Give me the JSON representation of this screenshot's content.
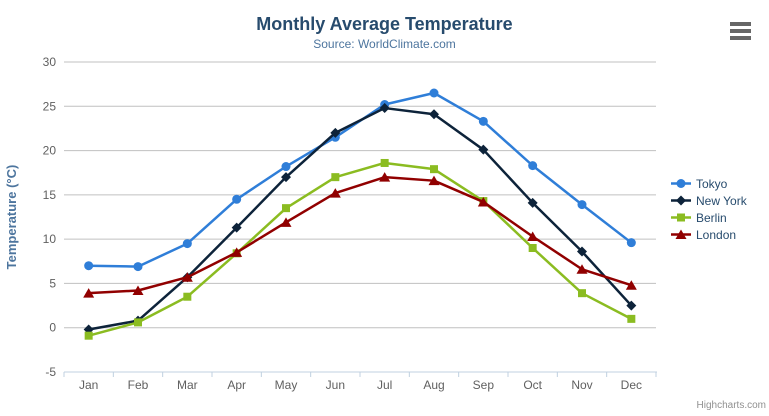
{
  "chart": {
    "title": "Monthly Average Temperature",
    "subtitle": "Source: WorldClimate.com",
    "credits_label": "Highcharts.com",
    "export_icon": "hamburger-menu-icon",
    "colors": {
      "background": "#ffffff",
      "title": "#274b6d",
      "subtitle": "#4d759e",
      "axis_label": "#606060",
      "axis_title": "#4d759e",
      "gridline": "#c0c0c0",
      "axis_line": "#c0d0e0",
      "tick": "#c0d0e0",
      "legend_text": "#274b6d",
      "credits": "#909090",
      "export_icon": "#666666"
    }
  },
  "chart_data": {
    "type": "line",
    "title": "Monthly Average Temperature",
    "subtitle": "Source: WorldClimate.com",
    "categories": [
      "Jan",
      "Feb",
      "Mar",
      "Apr",
      "May",
      "Jun",
      "Jul",
      "Aug",
      "Sep",
      "Oct",
      "Nov",
      "Dec"
    ],
    "xlabel": "",
    "ylabel": "Temperature (°C)",
    "ylim": [
      -5,
      30
    ],
    "ytick_step": 5,
    "grid": true,
    "legend_position": "right",
    "series": [
      {
        "name": "Tokyo",
        "color": "#2f7ed8",
        "marker": "circle",
        "values": [
          7.0,
          6.9,
          9.5,
          14.5,
          18.2,
          21.5,
          25.2,
          26.5,
          23.3,
          18.3,
          13.9,
          9.6
        ]
      },
      {
        "name": "New York",
        "color": "#0d233a",
        "marker": "diamond",
        "values": [
          -0.2,
          0.8,
          5.7,
          11.3,
          17.0,
          22.0,
          24.8,
          24.1,
          20.1,
          14.1,
          8.6,
          2.5
        ]
      },
      {
        "name": "Berlin",
        "color": "#8bbc21",
        "marker": "square",
        "values": [
          -0.9,
          0.6,
          3.5,
          8.4,
          13.5,
          17.0,
          18.6,
          17.9,
          14.3,
          9.0,
          3.9,
          1.0
        ]
      },
      {
        "name": "London",
        "color": "#910000",
        "marker": "triangle-up",
        "values": [
          3.9,
          4.2,
          5.7,
          8.5,
          11.9,
          15.2,
          17.0,
          16.6,
          14.2,
          10.3,
          6.6,
          4.8
        ]
      }
    ]
  }
}
